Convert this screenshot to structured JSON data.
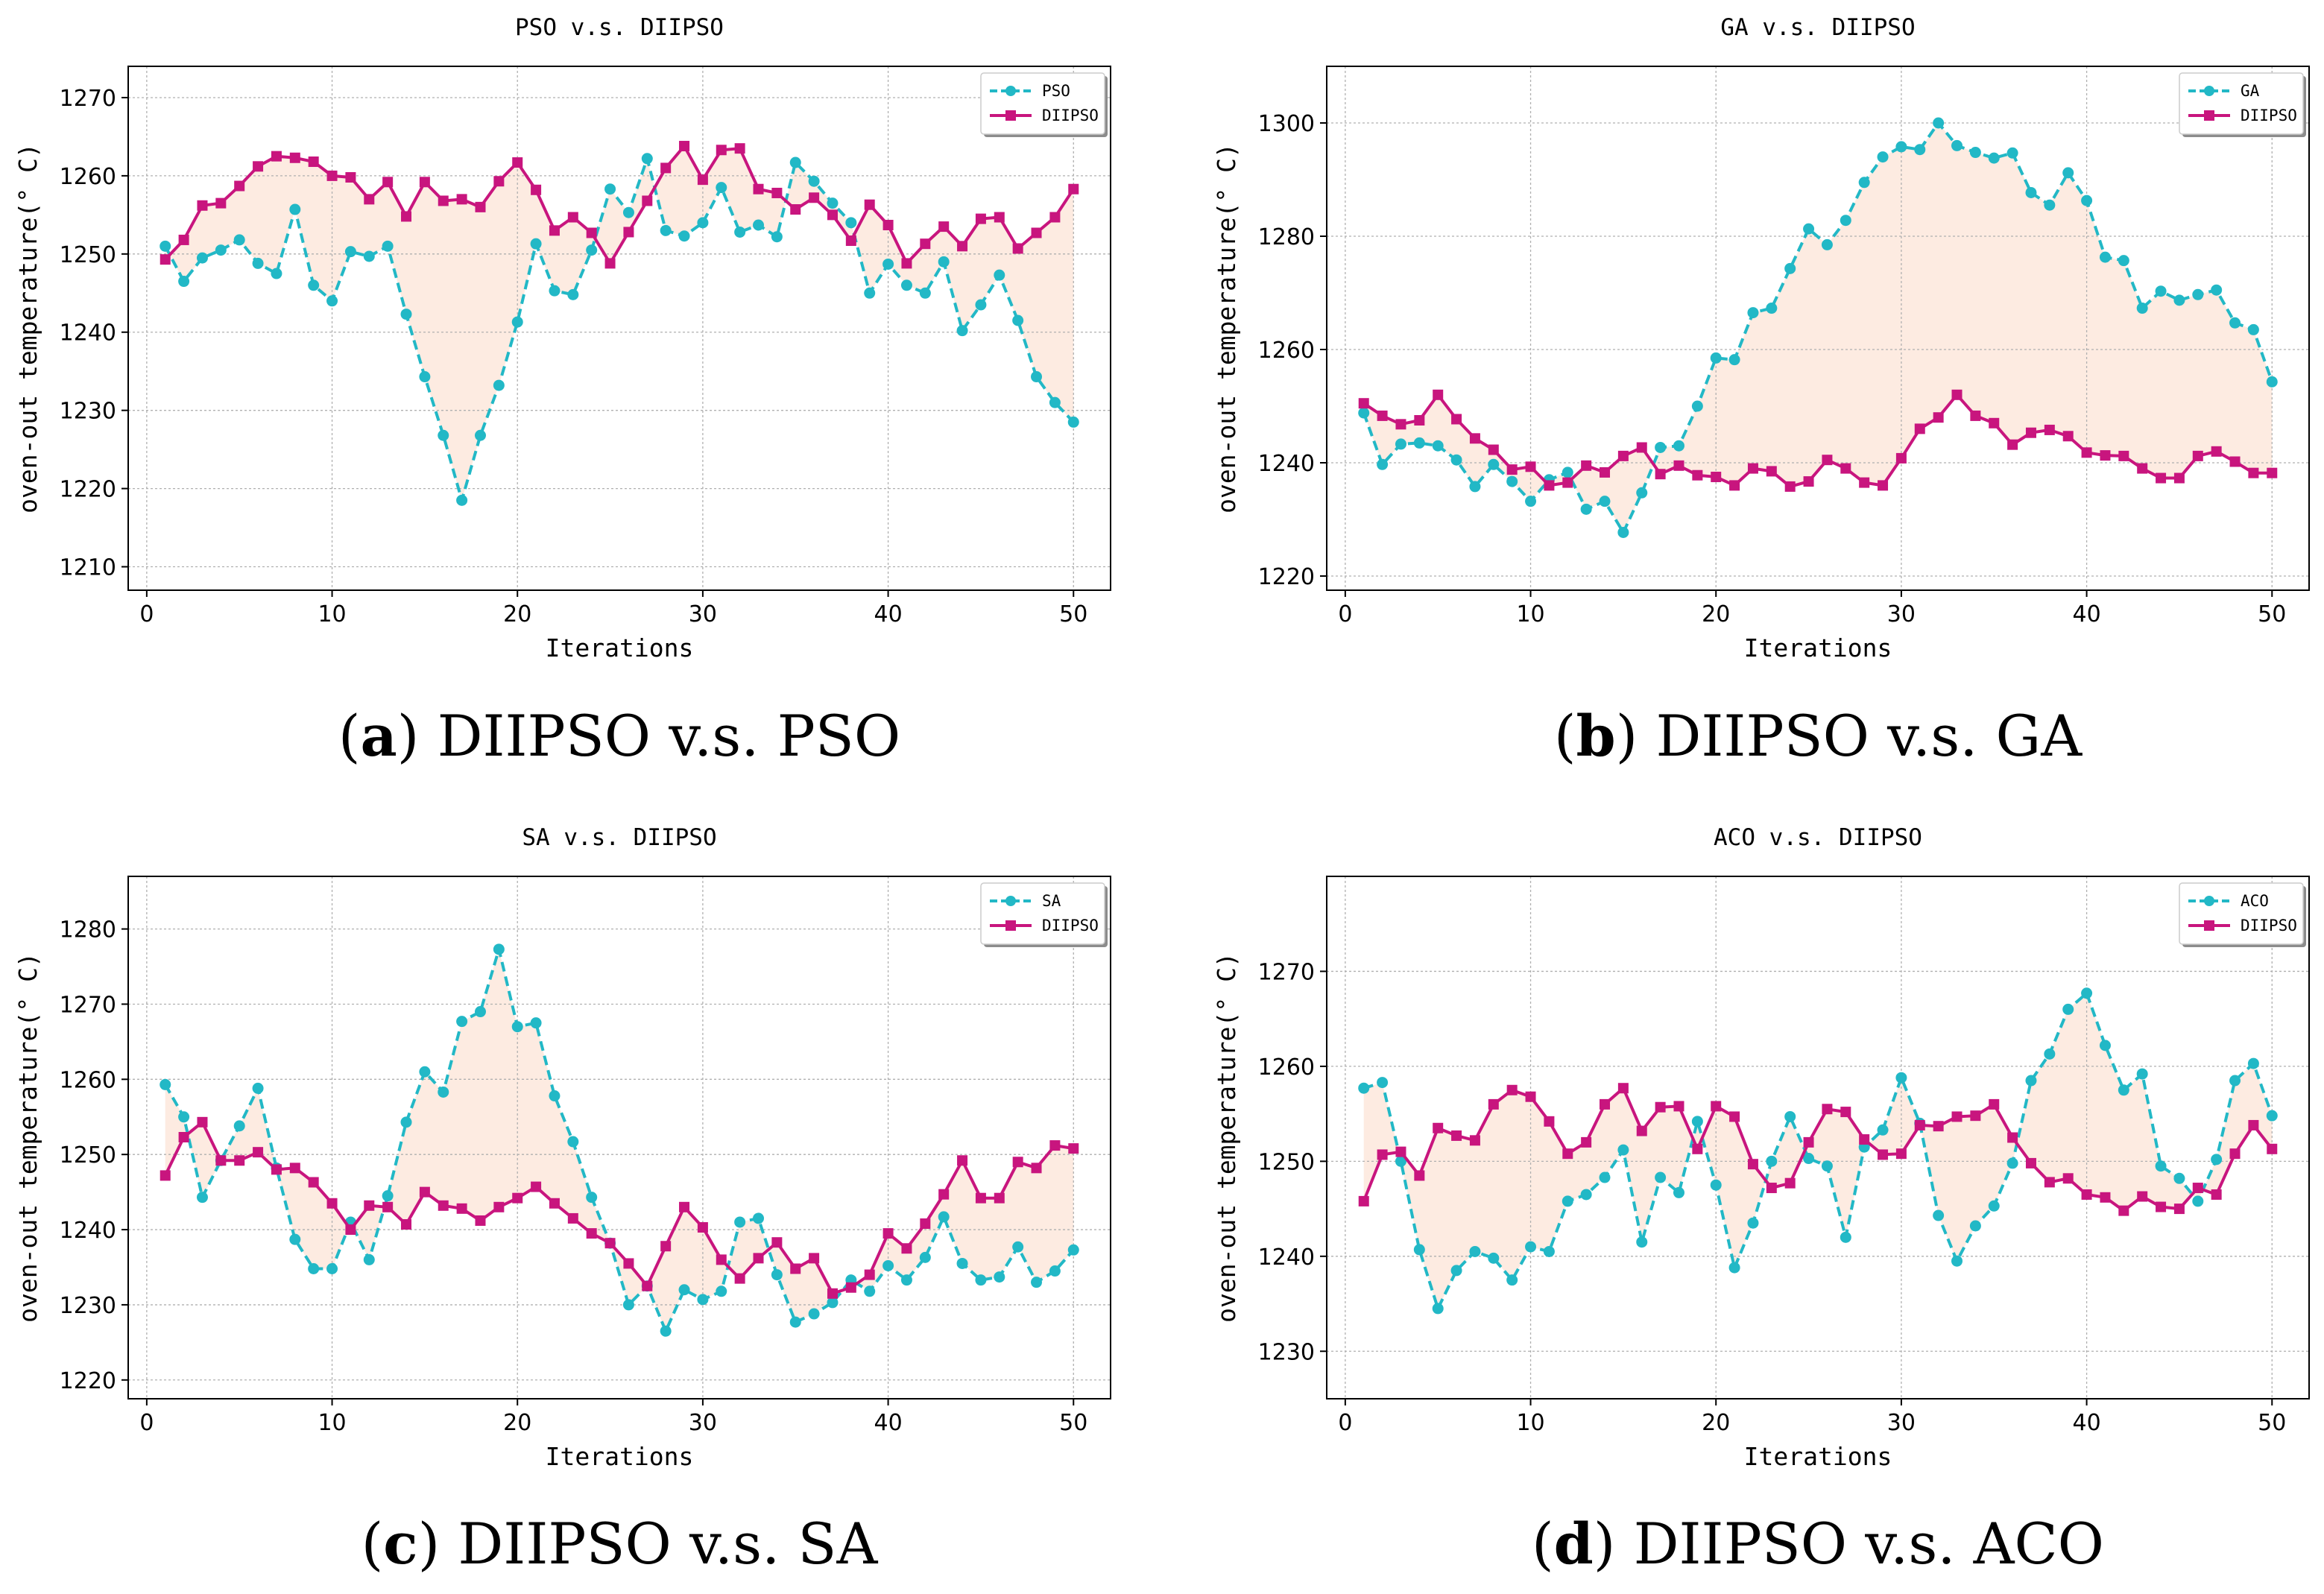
{
  "colors": {
    "series_a": "#22b8c6",
    "series_b": "#c8157e",
    "fill": "#fdebe1"
  },
  "chart_data": [
    {
      "type": "line",
      "title": "PSO v.s. DIIPSO",
      "caption_letter": "a",
      "caption_text": "DIIPSO v.s. PSO",
      "xlabel": "Iterations",
      "ylabel": "oven-out temperature(° C)",
      "xlim": [
        -1,
        52
      ],
      "ylim": [
        1207,
        1274
      ],
      "xticks": [
        0,
        10,
        20,
        30,
        40,
        50
      ],
      "yticks": [
        1210,
        1220,
        1230,
        1240,
        1250,
        1260,
        1270
      ],
      "legend_position": "top-right",
      "series": [
        {
          "name": "PSO",
          "values": [
            1251.0,
            1246.5,
            1249.5,
            1250.5,
            1251.8,
            1248.8,
            1247.5,
            1255.7,
            1246.0,
            1244.0,
            1250.3,
            1249.7,
            1251.0,
            1242.3,
            1234.3,
            1226.8,
            1218.5,
            1226.8,
            1233.2,
            1241.3,
            1251.3,
            1245.3,
            1244.8,
            1250.5,
            1258.3,
            1255.3,
            1262.2,
            1253.0,
            1252.3,
            1254.0,
            1258.5,
            1252.8,
            1253.7,
            1252.2,
            1261.7,
            1259.3,
            1256.5,
            1254.0,
            1245.0,
            1248.7,
            1246.0,
            1245.0,
            1249.0,
            1240.2,
            1243.5,
            1247.3,
            1241.5,
            1234.3,
            1231.0,
            1228.5
          ]
        },
        {
          "name": "DIIPSO",
          "values": [
            1249.3,
            1251.8,
            1256.2,
            1256.5,
            1258.7,
            1261.2,
            1262.5,
            1262.3,
            1261.8,
            1260.0,
            1259.8,
            1257.0,
            1259.2,
            1254.8,
            1259.2,
            1256.8,
            1257.0,
            1256.0,
            1259.3,
            1261.7,
            1258.2,
            1253.0,
            1254.7,
            1252.7,
            1248.8,
            1252.8,
            1256.8,
            1261.0,
            1263.8,
            1259.5,
            1263.3,
            1263.5,
            1258.3,
            1257.8,
            1255.7,
            1257.2,
            1255.0,
            1251.7,
            1256.3,
            1253.7,
            1248.8,
            1251.3,
            1253.5,
            1251.0,
            1254.5,
            1254.7,
            1250.7,
            1252.7,
            1254.7,
            1258.3
          ]
        }
      ]
    },
    {
      "type": "line",
      "title": "GA v.s. DIIPSO",
      "caption_letter": "b",
      "caption_text": "DIIPSO v.s. GA",
      "xlabel": "Iterations",
      "ylabel": "oven-out temperature(° C)",
      "xlim": [
        -1,
        52
      ],
      "ylim": [
        1217.5,
        1310
      ],
      "xticks": [
        0,
        10,
        20,
        30,
        40,
        50
      ],
      "yticks": [
        1220,
        1240,
        1260,
        1280,
        1300
      ],
      "legend_position": "top-right",
      "series": [
        {
          "name": "GA",
          "values": [
            1248.8,
            1239.7,
            1243.3,
            1243.5,
            1243.0,
            1240.5,
            1235.8,
            1239.7,
            1236.7,
            1233.2,
            1237.0,
            1238.3,
            1231.8,
            1233.2,
            1227.7,
            1234.7,
            1242.7,
            1243.0,
            1250.0,
            1258.5,
            1258.2,
            1266.5,
            1267.3,
            1274.3,
            1281.3,
            1278.5,
            1282.8,
            1289.5,
            1294.0,
            1295.8,
            1295.3,
            1300.0,
            1296.0,
            1294.8,
            1293.8,
            1294.7,
            1287.7,
            1285.5,
            1291.2,
            1286.3,
            1276.3,
            1275.7,
            1267.3,
            1270.3,
            1268.7,
            1269.7,
            1270.5,
            1264.7,
            1263.5,
            1254.3
          ]
        },
        {
          "name": "DIIPSO",
          "values": [
            1250.5,
            1248.3,
            1246.8,
            1247.5,
            1252.0,
            1247.7,
            1244.3,
            1242.3,
            1238.8,
            1239.3,
            1236.0,
            1236.5,
            1239.5,
            1238.3,
            1241.2,
            1242.7,
            1238.0,
            1239.5,
            1237.8,
            1237.5,
            1236.0,
            1239.0,
            1238.5,
            1235.8,
            1236.7,
            1240.5,
            1239.0,
            1236.5,
            1236.0,
            1240.8,
            1246.0,
            1248.0,
            1252.0,
            1248.3,
            1247.0,
            1243.2,
            1245.3,
            1245.8,
            1244.7,
            1241.8,
            1241.3,
            1241.2,
            1239.0,
            1237.3,
            1237.3,
            1241.2,
            1242.0,
            1240.2,
            1238.2,
            1238.2
          ]
        }
      ]
    },
    {
      "type": "line",
      "title": "SA v.s. DIIPSO",
      "caption_letter": "c",
      "caption_text": "DIIPSO v.s. SA",
      "xlabel": "Iterations",
      "ylabel": "oven-out temperature(° C)",
      "xlim": [
        -1,
        52
      ],
      "ylim": [
        1217.5,
        1287
      ],
      "xticks": [
        0,
        10,
        20,
        30,
        40,
        50
      ],
      "yticks": [
        1220,
        1230,
        1240,
        1250,
        1260,
        1270,
        1280
      ],
      "legend_position": "top-right",
      "series": [
        {
          "name": "SA",
          "values": [
            1259.3,
            1255.0,
            1244.3,
            1249.2,
            1253.8,
            1258.8,
            1248.2,
            1238.7,
            1234.8,
            1234.8,
            1241.0,
            1236.0,
            1244.5,
            1254.3,
            1261.0,
            1258.3,
            1267.7,
            1269.0,
            1277.3,
            1267.0,
            1267.5,
            1257.8,
            1251.7,
            1244.3,
            1238.2,
            1230.0,
            1232.5,
            1226.5,
            1232.0,
            1230.7,
            1231.8,
            1241.0,
            1241.5,
            1234.0,
            1227.7,
            1228.8,
            1230.3,
            1233.3,
            1231.8,
            1235.2,
            1233.3,
            1236.3,
            1241.7,
            1235.5,
            1233.3,
            1233.7,
            1237.7,
            1233.0,
            1234.5,
            1237.3
          ]
        },
        {
          "name": "DIIPSO",
          "values": [
            1247.2,
            1252.3,
            1254.3,
            1249.2,
            1249.2,
            1250.3,
            1248.0,
            1248.2,
            1246.3,
            1243.5,
            1240.0,
            1243.2,
            1243.0,
            1240.7,
            1245.0,
            1243.2,
            1242.8,
            1241.2,
            1243.0,
            1244.2,
            1245.7,
            1243.5,
            1241.5,
            1239.5,
            1238.2,
            1235.5,
            1232.5,
            1237.8,
            1243.0,
            1240.3,
            1236.0,
            1233.5,
            1236.2,
            1238.3,
            1234.8,
            1236.2,
            1231.5,
            1232.3,
            1234.0,
            1239.5,
            1237.5,
            1240.8,
            1244.7,
            1249.2,
            1244.2,
            1244.2,
            1249.0,
            1248.2,
            1251.2,
            1250.8
          ]
        }
      ]
    },
    {
      "type": "line",
      "title": "ACO v.s. DIIPSO",
      "caption_letter": "d",
      "caption_text": "DIIPSO v.s. ACO",
      "xlabel": "Iterations",
      "ylabel": "oven-out temperature(° C)",
      "xlim": [
        -1,
        52
      ],
      "ylim": [
        1225,
        1280
      ],
      "xticks": [
        0,
        10,
        20,
        30,
        40,
        50
      ],
      "yticks": [
        1230,
        1240,
        1250,
        1260,
        1270
      ],
      "legend_position": "top-right",
      "series": [
        {
          "name": "ACO",
          "values": [
            1257.7,
            1258.3,
            1250.0,
            1240.7,
            1234.5,
            1238.5,
            1240.5,
            1239.8,
            1237.5,
            1241.0,
            1240.5,
            1245.8,
            1246.5,
            1248.3,
            1251.2,
            1241.5,
            1248.3,
            1246.7,
            1254.2,
            1247.5,
            1238.8,
            1243.5,
            1250.0,
            1254.7,
            1250.3,
            1249.5,
            1242.0,
            1251.5,
            1253.3,
            1258.8,
            1254.0,
            1244.3,
            1239.5,
            1243.2,
            1245.3,
            1249.8,
            1258.5,
            1261.3,
            1266.0,
            1267.7,
            1262.2,
            1257.5,
            1259.2,
            1249.5,
            1248.2,
            1245.8,
            1250.2,
            1258.5,
            1260.3,
            1254.8
          ]
        },
        {
          "name": "DIIPSO",
          "values": [
            1245.8,
            1250.7,
            1251.0,
            1248.5,
            1253.5,
            1252.7,
            1252.2,
            1256.0,
            1257.5,
            1256.8,
            1254.2,
            1250.8,
            1252.0,
            1256.0,
            1257.7,
            1253.2,
            1255.7,
            1255.8,
            1251.3,
            1255.8,
            1254.7,
            1249.7,
            1247.2,
            1247.7,
            1252.0,
            1255.5,
            1255.2,
            1252.3,
            1250.7,
            1250.8,
            1253.8,
            1253.7,
            1254.7,
            1254.8,
            1256.0,
            1252.5,
            1249.8,
            1247.8,
            1248.2,
            1246.5,
            1246.2,
            1244.8,
            1246.3,
            1245.2,
            1245.0,
            1247.2,
            1246.5,
            1250.8,
            1253.8,
            1251.3
          ]
        }
      ]
    }
  ]
}
